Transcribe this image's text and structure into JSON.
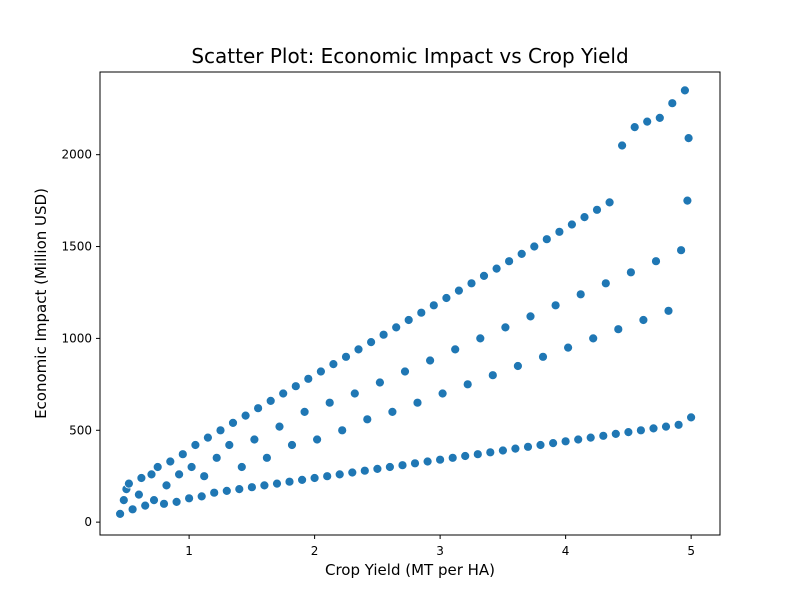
{
  "chart_data": {
    "type": "scatter",
    "title": "Scatter Plot: Economic Impact vs Crop Yield",
    "xlabel": "Crop Yield (MT per HA)",
    "ylabel": "Economic Impact (Million USD)",
    "xlim": [
      0.29,
      5.23
    ],
    "ylim": [
      -70,
      2450
    ],
    "xticks": [
      1,
      2,
      3,
      4,
      5
    ],
    "yticks": [
      0,
      500,
      1000,
      1500,
      2000
    ],
    "grid": false,
    "point_color": "#1f77b4",
    "point_edge_color": "#ffffff",
    "points": [
      [
        0.45,
        45
      ],
      [
        0.48,
        120
      ],
      [
        0.5,
        180
      ],
      [
        0.52,
        210
      ],
      [
        0.55,
        70
      ],
      [
        0.6,
        150
      ],
      [
        0.62,
        240
      ],
      [
        0.65,
        90
      ],
      [
        0.7,
        260
      ],
      [
        0.72,
        120
      ],
      [
        0.75,
        300
      ],
      [
        0.8,
        100
      ],
      [
        0.82,
        200
      ],
      [
        0.85,
        330
      ],
      [
        0.9,
        110
      ],
      [
        0.92,
        260
      ],
      [
        0.95,
        370
      ],
      [
        1.0,
        130
      ],
      [
        1.02,
        300
      ],
      [
        1.05,
        420
      ],
      [
        1.1,
        140
      ],
      [
        1.12,
        250
      ],
      [
        1.15,
        460
      ],
      [
        1.2,
        160
      ],
      [
        1.22,
        350
      ],
      [
        1.25,
        500
      ],
      [
        1.3,
        170
      ],
      [
        1.32,
        420
      ],
      [
        1.35,
        540
      ],
      [
        1.4,
        180
      ],
      [
        1.42,
        300
      ],
      [
        1.45,
        580
      ],
      [
        1.5,
        190
      ],
      [
        1.52,
        450
      ],
      [
        1.55,
        620
      ],
      [
        1.6,
        200
      ],
      [
        1.62,
        350
      ],
      [
        1.65,
        660
      ],
      [
        1.7,
        210
      ],
      [
        1.72,
        520
      ],
      [
        1.75,
        700
      ],
      [
        1.8,
        220
      ],
      [
        1.82,
        420
      ],
      [
        1.85,
        740
      ],
      [
        1.9,
        230
      ],
      [
        1.92,
        600
      ],
      [
        1.95,
        780
      ],
      [
        2.0,
        240
      ],
      [
        2.02,
        450
      ],
      [
        2.05,
        820
      ],
      [
        2.1,
        250
      ],
      [
        2.12,
        650
      ],
      [
        2.15,
        860
      ],
      [
        2.2,
        260
      ],
      [
        2.22,
        500
      ],
      [
        2.25,
        900
      ],
      [
        2.3,
        270
      ],
      [
        2.32,
        700
      ],
      [
        2.35,
        940
      ],
      [
        2.4,
        280
      ],
      [
        2.42,
        560
      ],
      [
        2.45,
        980
      ],
      [
        2.5,
        290
      ],
      [
        2.52,
        760
      ],
      [
        2.55,
        1020
      ],
      [
        2.6,
        300
      ],
      [
        2.62,
        600
      ],
      [
        2.65,
        1060
      ],
      [
        2.7,
        310
      ],
      [
        2.72,
        820
      ],
      [
        2.75,
        1100
      ],
      [
        2.8,
        320
      ],
      [
        2.82,
        650
      ],
      [
        2.85,
        1140
      ],
      [
        2.9,
        330
      ],
      [
        2.92,
        880
      ],
      [
        2.95,
        1180
      ],
      [
        3.0,
        340
      ],
      [
        3.02,
        700
      ],
      [
        3.05,
        1220
      ],
      [
        3.1,
        350
      ],
      [
        3.12,
        940
      ],
      [
        3.15,
        1260
      ],
      [
        3.2,
        360
      ],
      [
        3.22,
        750
      ],
      [
        3.25,
        1300
      ],
      [
        3.3,
        370
      ],
      [
        3.32,
        1000
      ],
      [
        3.35,
        1340
      ],
      [
        3.4,
        380
      ],
      [
        3.42,
        800
      ],
      [
        3.45,
        1380
      ],
      [
        3.5,
        390
      ],
      [
        3.52,
        1060
      ],
      [
        3.55,
        1420
      ],
      [
        3.6,
        400
      ],
      [
        3.62,
        850
      ],
      [
        3.65,
        1460
      ],
      [
        3.7,
        410
      ],
      [
        3.72,
        1120
      ],
      [
        3.75,
        1500
      ],
      [
        3.8,
        420
      ],
      [
        3.82,
        900
      ],
      [
        3.85,
        1540
      ],
      [
        3.9,
        430
      ],
      [
        3.92,
        1180
      ],
      [
        3.95,
        1580
      ],
      [
        4.0,
        440
      ],
      [
        4.02,
        950
      ],
      [
        4.05,
        1620
      ],
      [
        4.1,
        450
      ],
      [
        4.12,
        1240
      ],
      [
        4.15,
        1660
      ],
      [
        4.2,
        460
      ],
      [
        4.22,
        1000
      ],
      [
        4.25,
        1700
      ],
      [
        4.3,
        470
      ],
      [
        4.32,
        1300
      ],
      [
        4.35,
        1740
      ],
      [
        4.4,
        480
      ],
      [
        4.42,
        1050
      ],
      [
        4.45,
        2050
      ],
      [
        4.5,
        490
      ],
      [
        4.52,
        1360
      ],
      [
        4.55,
        2150
      ],
      [
        4.6,
        500
      ],
      [
        4.62,
        1100
      ],
      [
        4.65,
        2180
      ],
      [
        4.7,
        510
      ],
      [
        4.72,
        1420
      ],
      [
        4.75,
        2200
      ],
      [
        4.8,
        520
      ],
      [
        4.82,
        1150
      ],
      [
        4.85,
        2280
      ],
      [
        4.9,
        530
      ],
      [
        4.92,
        1480
      ],
      [
        4.95,
        2350
      ],
      [
        5.0,
        570
      ],
      [
        4.98,
        2090
      ],
      [
        4.97,
        1750
      ]
    ]
  }
}
